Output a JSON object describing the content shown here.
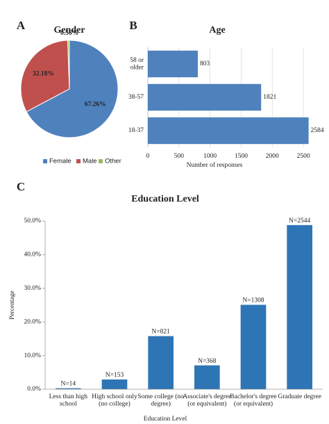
{
  "chart_data": [
    {
      "type": "pie",
      "panel": "A",
      "title": "Gender",
      "categories": [
        "Female",
        "Male",
        "Other"
      ],
      "values": [
        67.26,
        32.18,
        0.56
      ],
      "value_labels": [
        "67.26%",
        "32.18%",
        "0.56%"
      ],
      "colors": [
        "#4f81bd",
        "#c0504d",
        "#9bbb59"
      ],
      "legend": "bottom"
    },
    {
      "type": "barh",
      "panel": "B",
      "title": "Age",
      "categories": [
        "58 or\nolder",
        "38-57",
        "18-37"
      ],
      "values": [
        803,
        1821,
        2584
      ],
      "color": "#4f81bd",
      "xlim": [
        0,
        2700
      ],
      "xticks": [
        0,
        500,
        1000,
        1500,
        2000,
        2500
      ],
      "xlabel": "Number of responses",
      "grid": true
    },
    {
      "type": "bar",
      "panel": "C",
      "title": "Education Level",
      "categories": [
        "Less than high\nschool",
        "High school only\n(no college)",
        "Some college (no\ndegree)",
        "Associate's degree\n(or equivalent)",
        "Bachelor's degree\n(or equivalent)",
        "Graduate degree"
      ],
      "values": [
        0.3,
        2.9,
        15.8,
        7.1,
        25.1,
        48.8
      ],
      "annotations": [
        "N=14",
        "N=153",
        "N=821",
        "N=368",
        "N=1308",
        "N=2544"
      ],
      "color": "#2e75b6",
      "ylim": [
        0,
        50
      ],
      "yticks": [
        {
          "value": 0,
          "label": "0.0%"
        },
        {
          "value": 10,
          "label": "10.0%"
        },
        {
          "value": 20,
          "label": "20.0%"
        },
        {
          "value": 30,
          "label": "30.0%"
        },
        {
          "value": 40,
          "label": "40.0%"
        },
        {
          "value": 50,
          "label": "50.0%"
        }
      ],
      "xlabel": "Education Level",
      "ylabel": "Percentage",
      "grid": false
    }
  ]
}
